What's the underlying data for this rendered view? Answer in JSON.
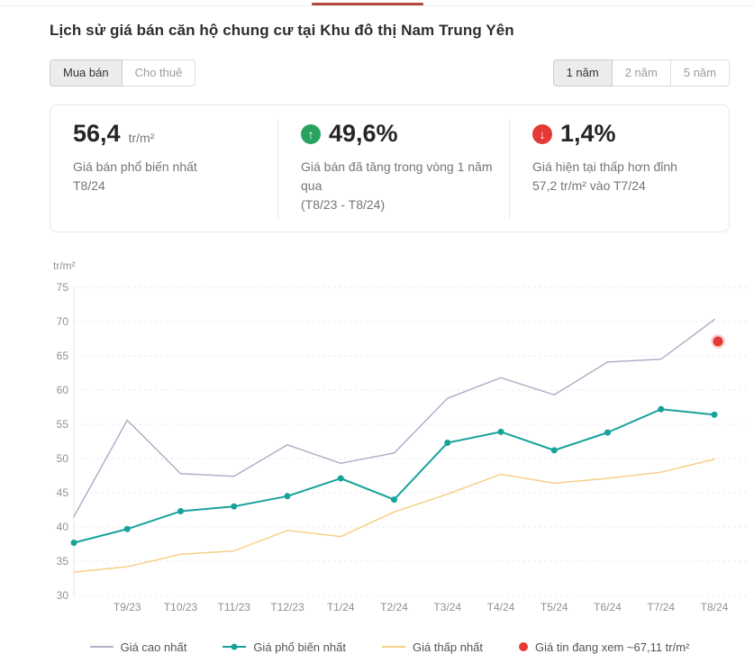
{
  "page_title": "Lịch sử giá bán căn hộ chung cư tại Khu đô thị Nam Trung Yên",
  "top_tab_indicator_color": "#b6473e",
  "transaction_toggle": {
    "options": [
      {
        "label": "Mua bán",
        "selected": true
      },
      {
        "label": "Cho thuê",
        "selected": false
      }
    ]
  },
  "range_toggle": {
    "options": [
      {
        "label": "1 năm",
        "selected": true
      },
      {
        "label": "2 năm",
        "selected": false
      },
      {
        "label": "5 năm",
        "selected": false
      }
    ]
  },
  "stats": [
    {
      "value": "56,4",
      "unit": "tr/m²",
      "desc_line1": "Giá bán phổ biến nhất",
      "desc_line2": "T8/24"
    },
    {
      "value": "49,6%",
      "icon": "arrow-up-circle-icon",
      "icon_glyph": "↑",
      "icon_color": "#28a35f",
      "desc_line1": "Giá bán đã tăng trong vòng 1 năm qua",
      "desc_line2": "(T8/23 - T8/24)"
    },
    {
      "value": "1,4%",
      "icon": "arrow-down-circle-icon",
      "icon_glyph": "↓",
      "icon_color": "#e53935",
      "desc_line1": "Giá hiện tại thấp hơn đỉnh",
      "desc_line2": "57,2 tr/m² vào T7/24"
    }
  ],
  "chart_data": {
    "type": "line",
    "title": "Lịch sử giá bán căn hộ chung cư tại Khu đô thị Nam Trung Yên",
    "ylabel": "tr/m²",
    "ylim": [
      30,
      75
    ],
    "ytick_step": 5,
    "grid": true,
    "legend_position": "bottom",
    "x_labels": [
      "T9/23",
      "T10/23",
      "T11/23",
      "T12/23",
      "T1/24",
      "T2/24",
      "T3/24",
      "T4/24",
      "T5/24",
      "T6/24",
      "T7/24",
      "T8/24"
    ],
    "first_point_unlabeled": true,
    "series": [
      {
        "name": "Giá cao nhất",
        "color": "#b8adc8",
        "markers": false,
        "values": [
          41.5,
          55.6,
          47.8,
          47.4,
          52.0,
          49.3,
          50.8,
          58.8,
          61.8,
          59.3,
          64.1,
          64.5,
          70.3
        ]
      },
      {
        "name": "Giá phổ biến nhất",
        "color": "#17a29b",
        "markers": true,
        "values": [
          37.7,
          39.7,
          42.3,
          43.0,
          44.5,
          47.1,
          44.0,
          52.3,
          53.9,
          51.2,
          53.8,
          57.2,
          56.4
        ]
      },
      {
        "name": "Giá thấp nhất",
        "color": "#f7cf87",
        "markers": false,
        "values": [
          33.4,
          34.2,
          36.0,
          36.5,
          39.5,
          38.6,
          42.2,
          44.8,
          47.7,
          46.4,
          47.1,
          48.0,
          49.9
        ]
      }
    ],
    "marker_point": {
      "name": "Giá tin đang xem",
      "value": 67.11,
      "color": "#e53935",
      "at_x_label": "T8/24"
    }
  },
  "legend": [
    {
      "label": "Giá cao nhất",
      "swatch": "line",
      "color": "#b8adc8"
    },
    {
      "label": "Giá phổ biến nhất",
      "swatch": "line-dot",
      "color": "#17a29b"
    },
    {
      "label": "Giá thấp nhất",
      "swatch": "line",
      "color": "#f7cf87"
    },
    {
      "label": "Giá tin đang xem ~67,11 tr/m²",
      "swatch": "dot",
      "color": "#e53935"
    }
  ]
}
